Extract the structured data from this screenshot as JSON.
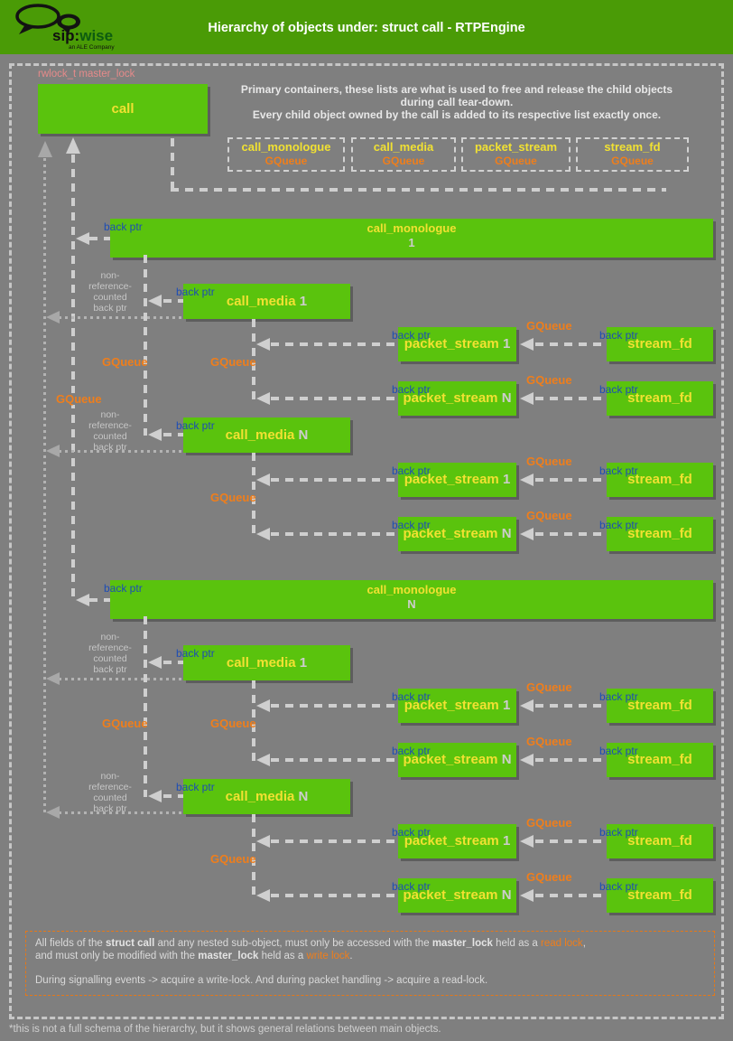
{
  "header": {
    "title": "Hierarchy of objects under: struct call - RTPEngine",
    "logo_sip": "sip:",
    "logo_wise": "wise",
    "logo_tagline": "an ALE Company"
  },
  "colors": {
    "header_green": "#4a9b06",
    "box_green": "#5ac30d",
    "yellow": "#f1e132",
    "orange": "#ef7e1b",
    "blue": "#1d4db5",
    "salmon": "#e58a8a",
    "background_gray": "#7f7f7f"
  },
  "master_lock_label": "rwlock_t master_lock",
  "call_box": {
    "label": "call"
  },
  "intro_lines": [
    "Primary containers, these lists are what is used to free and release the child objects",
    "during call tear-down.",
    "Every child object owned by the call is added to its respective list exactly once."
  ],
  "containers": [
    {
      "name": "call_monologue",
      "type": "GQueue"
    },
    {
      "name": "call_media",
      "type": "GQueue"
    },
    {
      "name": "packet_stream",
      "type": "GQueue"
    },
    {
      "name": "stream_fd",
      "type": "GQueue"
    }
  ],
  "labels": {
    "back_ptr": "back ptr",
    "gqueue": "GQueue",
    "non_ref_lines": [
      "non-",
      "reference-",
      "counted",
      "back ptr"
    ]
  },
  "tree": {
    "monologues": [
      {
        "label": "call_monologue",
        "index": "1",
        "media": [
          {
            "label": "call_media",
            "index": "1",
            "streams": [
              {
                "ps_label": "packet_stream",
                "ps_index": "1",
                "sfd_label": "stream_fd"
              },
              {
                "ps_label": "packet_stream",
                "ps_index": "N",
                "sfd_label": "stream_fd"
              }
            ]
          },
          {
            "label": "call_media",
            "index": "N",
            "streams": [
              {
                "ps_label": "packet_stream",
                "ps_index": "1",
                "sfd_label": "stream_fd"
              },
              {
                "ps_label": "packet_stream",
                "ps_index": "N",
                "sfd_label": "stream_fd"
              }
            ]
          }
        ]
      },
      {
        "label": "call_monologue",
        "index": "N",
        "media": [
          {
            "label": "call_media",
            "index": "1",
            "streams": [
              {
                "ps_label": "packet_stream",
                "ps_index": "1",
                "sfd_label": "stream_fd"
              },
              {
                "ps_label": "packet_stream",
                "ps_index": "N",
                "sfd_label": "stream_fd"
              }
            ]
          },
          {
            "label": "call_media",
            "index": "N",
            "streams": [
              {
                "ps_label": "packet_stream",
                "ps_index": "1",
                "sfd_label": "stream_fd"
              },
              {
                "ps_label": "packet_stream",
                "ps_index": "N",
                "sfd_label": "stream_fd"
              }
            ]
          }
        ]
      }
    ]
  },
  "note": {
    "lines": [
      [
        {
          "t": "All fields of the ",
          "s": ""
        },
        {
          "t": "struct call",
          "s": "b"
        },
        {
          "t": " and any nested sub-object, must only be accessed with the ",
          "s": ""
        },
        {
          "t": "master_lock",
          "s": "b"
        },
        {
          "t": " held as a ",
          "s": ""
        },
        {
          "t": "read lock",
          "s": "o"
        },
        {
          "t": ",",
          "s": ""
        }
      ],
      [
        {
          "t": "and must only be modified with the ",
          "s": ""
        },
        {
          "t": "master_lock",
          "s": "b"
        },
        {
          "t": " held as a ",
          "s": ""
        },
        {
          "t": "write lock",
          "s": "o"
        },
        {
          "t": ".",
          "s": ""
        }
      ],
      [
        {
          "t": "During signalling events -> acquire a write-lock. And during packet handling -> acquire a read-lock.",
          "s": ""
        }
      ]
    ]
  },
  "footnote": "*this is not a full schema of the hierarchy, but it shows general relations between main objects."
}
